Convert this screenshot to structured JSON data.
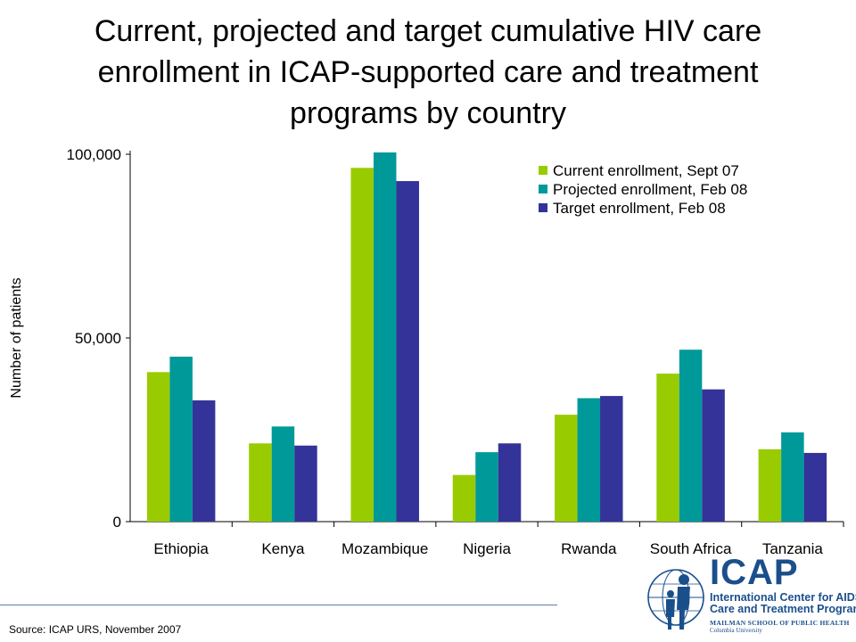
{
  "title_lines": [
    "Current, projected and target cumulative HIV care",
    "enrollment in ICAP-supported care and treatment",
    "programs by country"
  ],
  "source": "Source: ICAP URS, November 2007",
  "logo": {
    "name": "ICAP",
    "line1": "International Center for AIDS",
    "line2": "Care and Treatment Programs",
    "line3": "MAILMAN SCHOOL OF PUBLIC HEALTH",
    "line4": "Columbia University"
  },
  "colors": {
    "current": "#99cc00",
    "projected": "#009999",
    "target": "#333399",
    "logo": "#1b4f8c"
  },
  "chart_data": {
    "type": "bar",
    "title": "Current, projected and target cumulative HIV care enrollment in ICAP-supported care and treatment programs by country",
    "xlabel": "",
    "ylabel": "Number of patients",
    "ylim": [
      0,
      100000
    ],
    "yticks": [
      0,
      50000,
      100000
    ],
    "ytick_labels": [
      "0",
      "50,000",
      "100,000"
    ],
    "grid": false,
    "legend_position": "top-right",
    "categories": [
      "Ethiopia",
      "Kenya",
      "Mozambique",
      "Nigeria",
      "Rwanda",
      "South Africa",
      "Tanzania"
    ],
    "series": [
      {
        "name": "Current enrollment, Sept 07",
        "color": "#99cc00",
        "values": [
          40700,
          21300,
          96300,
          12700,
          29100,
          40300,
          19700
        ]
      },
      {
        "name": "Projected enrollment, Feb 08",
        "color": "#009999",
        "values": [
          44900,
          25900,
          100500,
          18900,
          33600,
          46800,
          24300
        ]
      },
      {
        "name": "Target enrollment, Feb 08",
        "color": "#333399",
        "values": [
          33000,
          20700,
          92700,
          21300,
          34200,
          36000,
          18700
        ]
      }
    ]
  }
}
